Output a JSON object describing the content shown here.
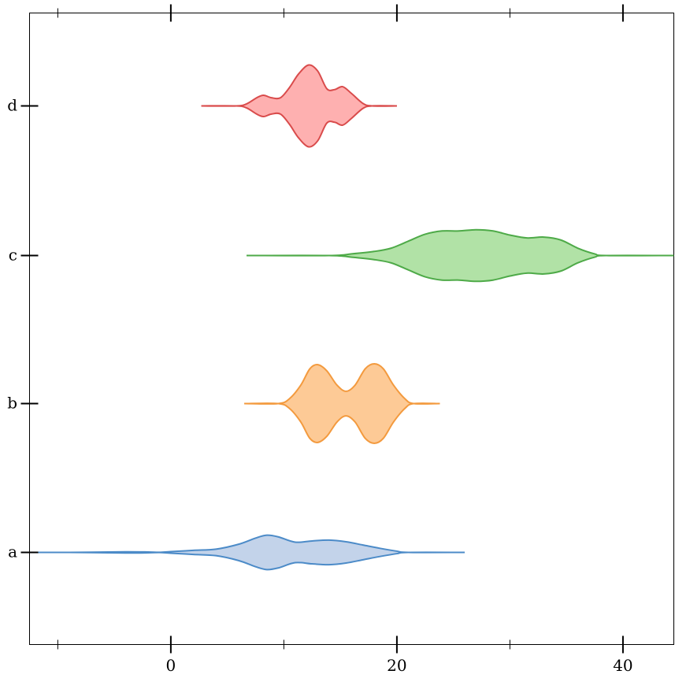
{
  "chart_data": {
    "type": "violin",
    "title": "",
    "xlabel": "",
    "ylabel": "",
    "xlim": [
      -12.5,
      44.5
    ],
    "x_major_ticks": [
      0,
      20,
      40
    ],
    "x_minor_ticks": [
      -10,
      10,
      30
    ],
    "x_tick_labels": [
      "0",
      "20",
      "40"
    ],
    "categories": [
      "a",
      "b",
      "c",
      "d"
    ],
    "grid": false,
    "legend": "none",
    "series": [
      {
        "category": "a",
        "color": "#4C8BC8",
        "fill": "#C3D3EA",
        "range": [
          -12.5,
          26
        ],
        "density": [
          [
            -12.5,
            0.0
          ],
          [
            -9,
            0.0
          ],
          [
            -7,
            0.005
          ],
          [
            -4,
            0.015
          ],
          [
            -2,
            0.01
          ],
          [
            -1,
            0.003
          ],
          [
            0,
            0.02
          ],
          [
            2,
            0.05
          ],
          [
            4,
            0.08
          ],
          [
            6,
            0.2
          ],
          [
            7.5,
            0.35
          ],
          [
            8.5,
            0.42
          ],
          [
            9.5,
            0.38
          ],
          [
            11,
            0.25
          ],
          [
            12.5,
            0.28
          ],
          [
            14,
            0.3
          ],
          [
            15.5,
            0.26
          ],
          [
            17,
            0.18
          ],
          [
            18.5,
            0.1
          ],
          [
            20,
            0.03
          ],
          [
            21,
            0.0
          ],
          [
            26,
            0.0
          ]
        ]
      },
      {
        "category": "b",
        "color": "#F39A3E",
        "fill": "#FDCA96",
        "range": [
          6.5,
          23.8
        ],
        "density": [
          [
            6.5,
            0.0
          ],
          [
            9.5,
            0.0
          ],
          [
            10.5,
            0.12
          ],
          [
            11.5,
            0.45
          ],
          [
            12.3,
            0.85
          ],
          [
            13,
            0.95
          ],
          [
            13.8,
            0.8
          ],
          [
            14.7,
            0.45
          ],
          [
            15.5,
            0.3
          ],
          [
            16.3,
            0.45
          ],
          [
            17.2,
            0.85
          ],
          [
            18,
            0.97
          ],
          [
            18.8,
            0.85
          ],
          [
            19.7,
            0.45
          ],
          [
            20.7,
            0.12
          ],
          [
            21.5,
            0.0
          ],
          [
            23.8,
            0.0
          ]
        ]
      },
      {
        "category": "c",
        "color": "#4EAA48",
        "fill": "#B1E2A6",
        "range": [
          6.7,
          44.5
        ],
        "density": [
          [
            6.7,
            0.0
          ],
          [
            14,
            0.0
          ],
          [
            16,
            0.04
          ],
          [
            18,
            0.1
          ],
          [
            19.5,
            0.18
          ],
          [
            21,
            0.35
          ],
          [
            22.5,
            0.52
          ],
          [
            24,
            0.6
          ],
          [
            25.5,
            0.6
          ],
          [
            27,
            0.63
          ],
          [
            28.5,
            0.6
          ],
          [
            30,
            0.5
          ],
          [
            31.5,
            0.43
          ],
          [
            33,
            0.45
          ],
          [
            34.5,
            0.38
          ],
          [
            36,
            0.18
          ],
          [
            37.5,
            0.04
          ],
          [
            38.5,
            0.0
          ],
          [
            44.5,
            0.0
          ]
        ]
      },
      {
        "category": "d",
        "color": "#D94B4B",
        "fill": "#FEB0B0",
        "range": [
          2.7,
          20
        ],
        "density": [
          [
            2.7,
            0.0
          ],
          [
            5.8,
            0.0
          ],
          [
            6.7,
            0.05
          ],
          [
            7.6,
            0.2
          ],
          [
            8.2,
            0.26
          ],
          [
            8.9,
            0.2
          ],
          [
            9.7,
            0.2
          ],
          [
            10.5,
            0.45
          ],
          [
            11.3,
            0.78
          ],
          [
            12.2,
            1.0
          ],
          [
            13,
            0.85
          ],
          [
            13.8,
            0.42
          ],
          [
            14.5,
            0.4
          ],
          [
            15.2,
            0.47
          ],
          [
            16,
            0.3
          ],
          [
            17,
            0.06
          ],
          [
            17.8,
            0.0
          ],
          [
            20,
            0.0
          ]
        ]
      }
    ]
  }
}
